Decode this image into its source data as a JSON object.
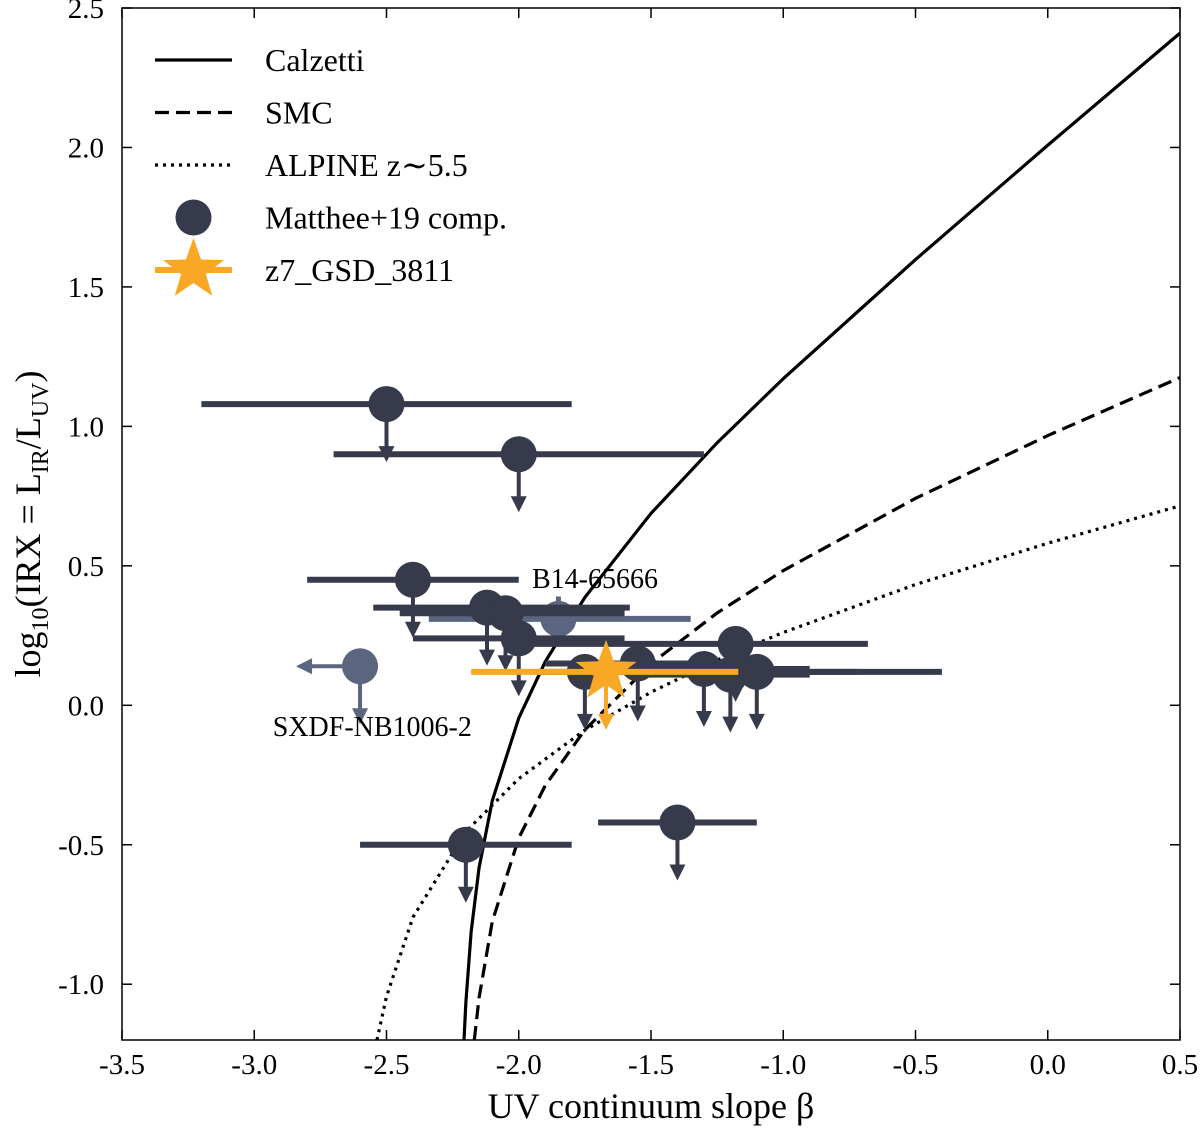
{
  "chart_data": {
    "type": "scatter",
    "x_label": "UV continuum slope β",
    "y_label": [
      "log",
      "10",
      "(IRX = L",
      "IR",
      "/L",
      "UV",
      ")"
    ],
    "xlim": [
      -3.5,
      0.5
    ],
    "ylim": [
      -1.2,
      2.5
    ],
    "xticks": [
      -3.5,
      {
        "value": -3,
        "label": "-3.0"
      },
      -2.5,
      {
        "value": -2,
        "label": "-2.0"
      },
      -1.5,
      {
        "value": -1,
        "label": "-1.0"
      },
      -0.5,
      {
        "value": 0,
        "label": "0.0"
      },
      0.5
    ],
    "yticks": [
      {
        "value": -1,
        "label": "-1.0"
      },
      -0.5,
      {
        "value": 0,
        "label": "0.0"
      },
      0.5,
      {
        "value": 1,
        "label": "1.0"
      },
      1.5,
      {
        "value": 2,
        "label": "2.0"
      },
      2.5
    ],
    "legend": "upper left",
    "curves": [
      {
        "name": "Calzetti",
        "style": "solid",
        "color": "#000000",
        "x": [
          -2.207,
          -2.2,
          -2.18,
          -2.15,
          -2.1,
          -2.0,
          -1.9,
          -1.75,
          -1.5,
          -1.25,
          -1.0,
          -0.5,
          0,
          0.5
        ],
        "y": [
          -1.2,
          -1.066,
          -0.812,
          -0.582,
          -0.342,
          -0.046,
          0.156,
          0.387,
          0.688,
          0.941,
          1.171,
          1.598,
          2.008,
          2.41
        ]
      },
      {
        "name": "SMC",
        "style": "dashed",
        "color": "#000000",
        "x": [
          -2.168,
          -2.15,
          -2.1,
          -2.0,
          -1.9,
          -1.75,
          -1.5,
          -1.25,
          -1.0,
          -0.5,
          0,
          0.5
        ],
        "y": [
          -1.2,
          -1.048,
          -0.775,
          -0.476,
          -0.288,
          -0.088,
          0.149,
          0.331,
          0.483,
          0.742,
          0.967,
          1.175
        ]
      },
      {
        "name": "ALPINE z∼5.5",
        "style": "dotted",
        "color": "#000000",
        "x": [
          -2.536,
          -2.5,
          -2.4,
          -2.2,
          -2.0,
          -1.75,
          -1.5,
          -1.25,
          -1.0,
          -0.5,
          0,
          0.5
        ],
        "y": [
          -1.2,
          -1.044,
          -0.76,
          -0.453,
          -0.263,
          -0.089,
          0.047,
          0.162,
          0.261,
          0.433,
          0.581,
          0.715
        ]
      }
    ],
    "series": [
      {
        "name": "Matthee+19 comp.",
        "marker": "circle",
        "color": "#363a4b",
        "points": [
          {
            "x": -2.5,
            "y": 1.08,
            "x_range": [
              -3.2,
              -1.8
            ],
            "upper_limit": true
          },
          {
            "x": -2.0,
            "y": 0.9,
            "x_range": [
              -2.7,
              -1.3
            ],
            "upper_limit": true
          },
          {
            "x": -2.4,
            "y": 0.45,
            "x_range": [
              -2.8,
              -2.0
            ],
            "upper_limit": true
          },
          {
            "x": -2.12,
            "y": 0.35,
            "x_range": [
              -2.55,
              -1.58
            ],
            "upper_limit": true
          },
          {
            "x": -2.05,
            "y": 0.33,
            "x_range": [
              -2.45,
              -1.6
            ],
            "upper_limit": true
          },
          {
            "x": -2.0,
            "y": 0.24,
            "x_range": [
              -2.4,
              -1.6
            ],
            "upper_limit": true
          },
          {
            "x": -1.75,
            "y": 0.12,
            "x_range": [
              -1.93,
              -0.72
            ],
            "upper_limit": true
          },
          {
            "x": -1.55,
            "y": 0.15,
            "x_range": [
              -1.9,
              -1.15
            ],
            "upper_limit": true
          },
          {
            "x": -1.3,
            "y": 0.13,
            "x_range": [
              -1.6,
              -0.9
            ],
            "upper_limit": true
          },
          {
            "x": -1.2,
            "y": 0.11,
            "x_range": [
              -1.55,
              -0.9
            ],
            "upper_limit": true
          },
          {
            "x": -1.18,
            "y": 0.22,
            "x_range": [
              -1.95,
              -0.68
            ],
            "upper_limit": true
          },
          {
            "x": -1.1,
            "y": 0.12,
            "x_range": [
              -1.45,
              -0.4
            ],
            "upper_limit": true
          },
          {
            "x": -2.2,
            "y": -0.5,
            "x_range": [
              -2.6,
              -1.8
            ],
            "upper_limit": true
          },
          {
            "x": -1.4,
            "y": -0.42,
            "x_range": [
              -1.7,
              -1.1
            ],
            "upper_limit": true
          }
        ]
      },
      {
        "name": "z7_GSD_3811",
        "marker": "star",
        "color": "#f9a825",
        "points": [
          {
            "x": -1.67,
            "y": 0.12,
            "x_range": [
              -2.18,
              -1.17
            ],
            "upper_limit": true
          }
        ]
      }
    ],
    "labelled_points": [
      {
        "label": "B14-65666",
        "color": "#5c6580",
        "x": -1.85,
        "y": 0.31,
        "x_range": [
          -2.34,
          -1.35
        ],
        "y_range": [
          0.24,
          0.39
        ],
        "label_x": -1.95,
        "label_y": 0.42
      },
      {
        "label": "SXDF-NB1006-2",
        "color": "#5c6580",
        "x": -2.6,
        "y": 0.14,
        "upper_limit": true,
        "x_upper_limit": true,
        "label_x": -2.93,
        "label_y": -0.11
      }
    ]
  }
}
